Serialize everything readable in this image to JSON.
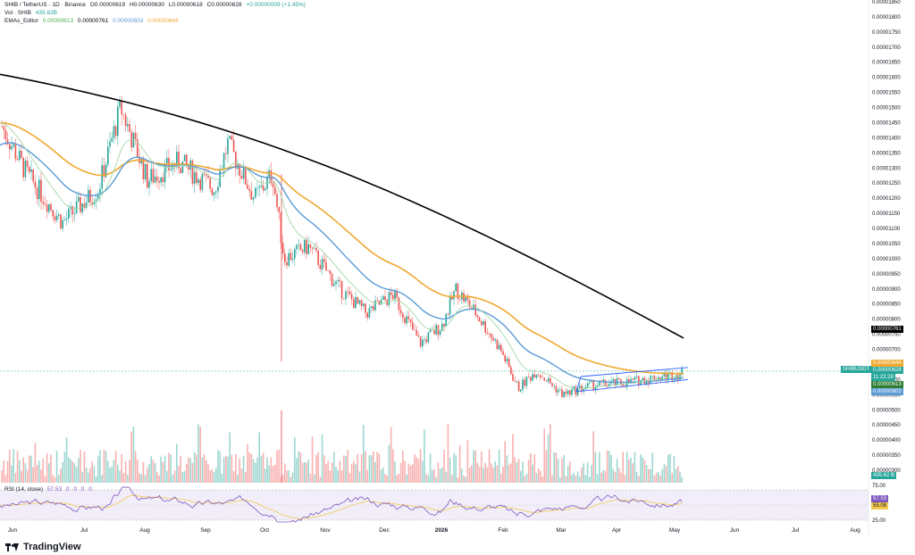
{
  "legend": {
    "symbol": "SHIB / TetherUS · 1D · Binance",
    "open": "O0.00000619",
    "high": "H0.00000630",
    "low": "L0.00000618",
    "close": "C0.00000628",
    "change": "+0.00000009 (+1.45%)",
    "vol_label": "Vol · SHIB",
    "vol_value": "435.62B",
    "ema_label": "EMAs_Editor",
    "ema1": "0.00000613",
    "ema2": "0.00000761",
    "ema3": "0.00000603",
    "ema4": "0.00000644"
  },
  "rsi_legend": {
    "label": "RSI (14, close)",
    "value": "57.53",
    "extras": [
      "0",
      "0",
      "0",
      "0"
    ]
  },
  "price_axis": [
    "0.00001850",
    "0.00001800",
    "0.00001750",
    "0.00001700",
    "0.00001650",
    "0.00001600",
    "0.00001550",
    "0.00001500",
    "0.00001450",
    "0.00001400",
    "0.00001350",
    "0.00001300",
    "0.00001250",
    "0.00001200",
    "0.00001150",
    "0.00001100",
    "0.00001050",
    "0.00001000",
    "0.00000950",
    "0.00000900",
    "0.00000850",
    "0.00000800",
    "0.00000750",
    "0.00000700",
    "0.00000650",
    "0.00000600",
    "0.00000550",
    "0.00000500",
    "0.00000450",
    "0.00000400",
    "0.00000350",
    "0.00000300"
  ],
  "price_tags": {
    "ema200": "0.00000761",
    "ema100": "0.00000644",
    "symbol_tag": "SHIBUSDT",
    "last": "0.00000628",
    "countdown": "11:22:28",
    "ema20": "0.00000613",
    "ema50": "0.00000603",
    "volume": "435.62 B"
  },
  "rsi_axis": {
    "upper": "75.00",
    "lower": "25.00",
    "tag1": "57.53",
    "tag2": "55.08"
  },
  "time_axis": [
    "Jun",
    "Jul",
    "Aug",
    "Sep",
    "Oct",
    "Nov",
    "Dec",
    "2026",
    "Feb",
    "Mar",
    "Apr",
    "May",
    "Jun",
    "Jul",
    "Aug"
  ],
  "brand": "TradingView",
  "colors": {
    "up": "#26a69a",
    "down": "#ef5350",
    "ema200": "#000000",
    "ema100": "#f0a830",
    "ema50": "#5b9bd5",
    "ema20": "#a5d6a7",
    "rsi_line": "#7e57c2",
    "rsi_ma": "#f2c94c",
    "channel": "#2962ff",
    "last_tag": "#26a69a",
    "symbol_tag": "#26a69a"
  },
  "icons": {
    "logo": "tradingview-logo"
  }
}
